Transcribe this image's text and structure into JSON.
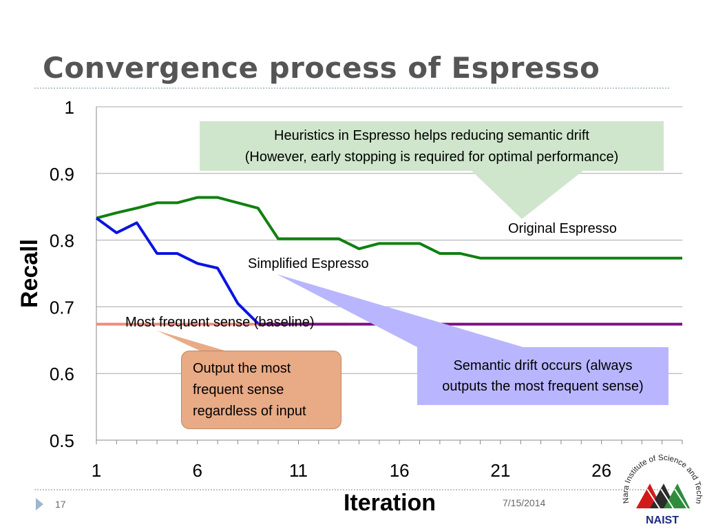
{
  "slide": {
    "title": "Convergence process of Espresso",
    "page_number": "17",
    "date": "7/15/2014"
  },
  "callouts": {
    "heuristics_line1": "Heuristics in Espresso helps reducing semantic drift",
    "heuristics_line2": "(However, early stopping is required for optimal performance)",
    "drift_line1": "Semantic drift occurs (always",
    "drift_line2": "outputs the most frequent sense)",
    "output_line1": "Output the most",
    "output_line2": "frequent sense",
    "output_line3": "regardless of input"
  },
  "logo": {
    "arc_text": "Nara Institute of Science and Technology",
    "name": "NAIST"
  },
  "colors": {
    "original": "#108010",
    "simplified": "#0a14e0",
    "baseline": "#7a0f86",
    "baseline_start": "#f28a82",
    "grid": "#a6a6a6"
  },
  "chart_data": {
    "type": "line",
    "xlabel": "Iteration",
    "ylabel": "Recall",
    "xlim": [
      1,
      30
    ],
    "ylim": [
      0.5,
      1
    ],
    "x_ticks": [
      "1",
      "6",
      "11",
      "16",
      "21",
      "26"
    ],
    "y_ticks": [
      "0.5",
      "0.6",
      "0.7",
      "0.8",
      "0.9",
      "1"
    ],
    "grid": "horizontal",
    "series": [
      {
        "name": "Original Espresso",
        "x": [
          1,
          2,
          3,
          4,
          5,
          6,
          7,
          8,
          9,
          10,
          11,
          12,
          13,
          14,
          15,
          16,
          17,
          18,
          19,
          20,
          21,
          22,
          23,
          24,
          25,
          26,
          27,
          28,
          29,
          30
        ],
        "y": [
          0.833,
          0.841,
          0.848,
          0.856,
          0.856,
          0.864,
          0.864,
          0.856,
          0.848,
          0.802,
          0.802,
          0.802,
          0.802,
          0.787,
          0.795,
          0.795,
          0.795,
          0.78,
          0.78,
          0.773,
          0.773,
          0.773,
          0.773,
          0.773,
          0.773,
          0.773,
          0.773,
          0.773,
          0.773,
          0.773
        ]
      },
      {
        "name": "Simplified Espresso",
        "x": [
          1,
          2,
          3,
          4,
          5,
          6,
          7,
          8,
          9,
          10,
          11,
          12,
          13,
          14,
          15,
          16,
          17,
          18,
          19,
          20,
          21,
          22,
          23,
          24,
          25,
          26,
          27,
          28,
          29,
          30
        ],
        "y": [
          0.833,
          0.811,
          0.826,
          0.78,
          0.78,
          0.765,
          0.758,
          0.705,
          0.675,
          0.675,
          0.675,
          0.675,
          0.675,
          0.675,
          0.675,
          0.675,
          0.675,
          0.675,
          0.675,
          0.675,
          0.675,
          0.675,
          0.675,
          0.675,
          0.675,
          0.675,
          0.675,
          0.675,
          0.675,
          0.675
        ]
      },
      {
        "name": "Most frequent sense (baseline)",
        "x": [
          1,
          30
        ],
        "y": [
          0.674,
          0.674
        ]
      }
    ]
  }
}
